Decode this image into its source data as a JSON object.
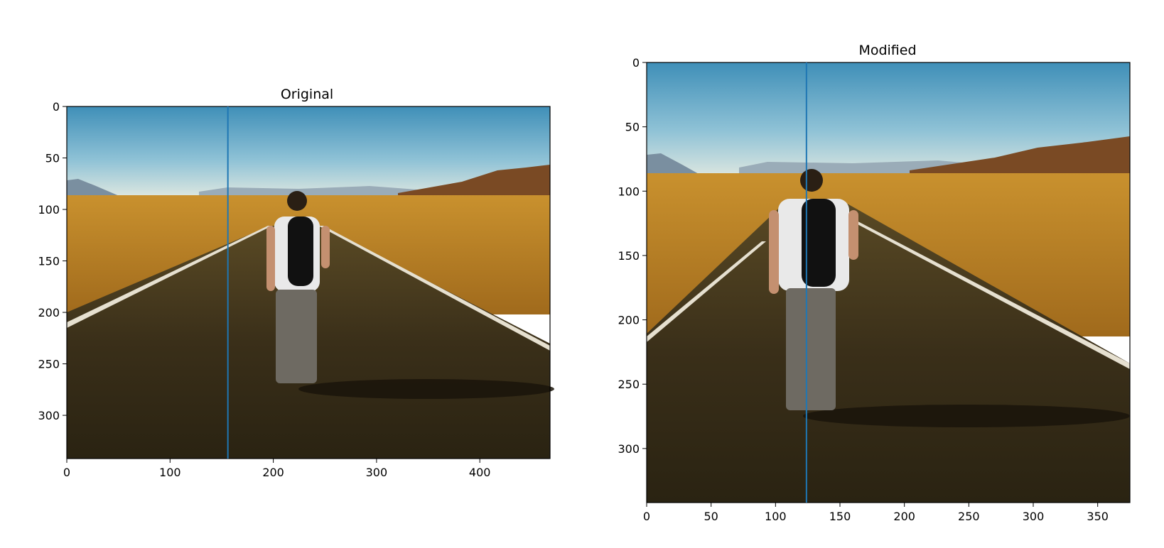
{
  "chart_data": [
    {
      "type": "image",
      "title": "Original",
      "xlim": [
        0,
        468
      ],
      "ylim": [
        342,
        0
      ],
      "xticks": [
        0,
        100,
        200,
        300,
        400
      ],
      "yticks": [
        0,
        50,
        100,
        150,
        200,
        250,
        300
      ],
      "vline": {
        "x": 156,
        "color": "#1f77b4"
      },
      "image_description": "desert road scene, person walking away on asphalt road toward horizon",
      "grid": false
    },
    {
      "type": "image",
      "title": "Modified",
      "xlim": [
        0,
        375
      ],
      "ylim": [
        342,
        0
      ],
      "xticks": [
        0,
        50,
        100,
        150,
        200,
        250,
        300,
        350
      ],
      "yticks": [
        0,
        50,
        100,
        150,
        200,
        250,
        300
      ],
      "vline": {
        "x": 124,
        "color": "#1f77b4"
      },
      "image_description": "same desert road scene, horizontally compressed (seam-carved)",
      "grid": false
    }
  ]
}
